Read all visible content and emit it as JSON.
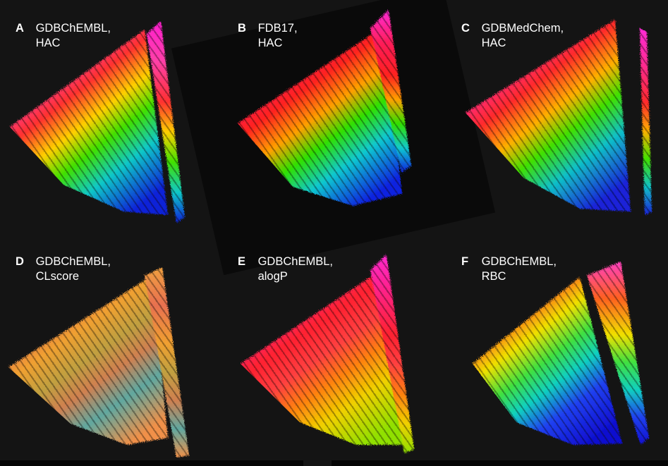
{
  "panels": [
    {
      "letter": "A",
      "line1": "GDBChEMBL,",
      "line2": "HAC",
      "colors": [
        "#ff1fd0",
        "#ff40a8",
        "#ff3030",
        "#ffd000",
        "#40e000",
        "#10c8c8",
        "#1020d8"
      ]
    },
    {
      "letter": "B",
      "line1": "FDB17,",
      "line2": "HAC",
      "colors": [
        "#ff2ad8",
        "#ff1e5a",
        "#ff2020",
        "#ffa000",
        "#30e000",
        "#10c8d0",
        "#1020e0"
      ]
    },
    {
      "letter": "C",
      "line1": "GDBMedChem,",
      "line2": "HAC",
      "colors": [
        "#ff2ad8",
        "#ff2a90",
        "#ff2a2a",
        "#ffb000",
        "#40e000",
        "#10c0c8",
        "#1a20d8"
      ]
    },
    {
      "letter": "D",
      "line1": "GDBChEMBL,",
      "line2": "CLscore",
      "colors": [
        "#f0a040",
        "#e87050",
        "#f0a030",
        "#c0a040",
        "#d08050",
        "#60a8a0",
        "#f09048"
      ]
    },
    {
      "letter": "E",
      "line1": "GDBChEMBL,",
      "line2": "alogP",
      "colors": [
        "#ff2ad0",
        "#ff2080",
        "#ff2030",
        "#ff4040",
        "#ff8010",
        "#f0d000",
        "#90e000"
      ]
    },
    {
      "letter": "F",
      "line1": "GDBChEMBL,",
      "line2": "RBC",
      "colors": [
        "#ff40c0",
        "#ff6020",
        "#f0e000",
        "#40e040",
        "#10d0c0",
        "#2040f0",
        "#1010d0"
      ]
    }
  ]
}
